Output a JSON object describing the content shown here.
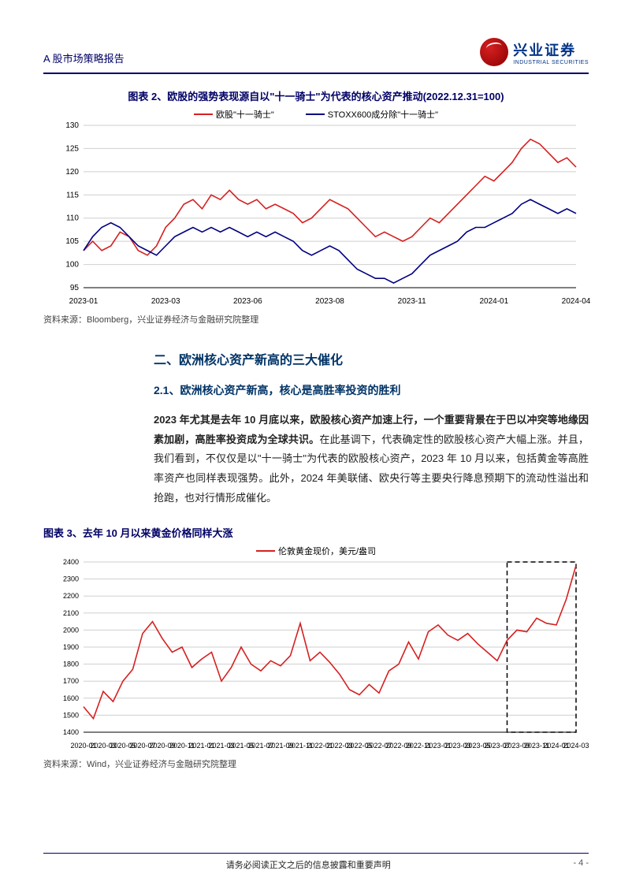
{
  "header": {
    "report_type": "A 股市场策略报告",
    "logo_cn": "兴业证券",
    "logo_en": "INDUSTRIAL SECURITIES"
  },
  "chart2": {
    "title": "图表 2、欧股的强势表现源自以\"十一骑士\"为代表的核心资产推动(2022.12.31=100)",
    "type": "line",
    "legend": [
      {
        "label": "欧股\"十一骑士\"",
        "color": "#d62020"
      },
      {
        "label": "STOXX600成分除\"十一骑士\"",
        "color": "#000080"
      }
    ],
    "x_categories": [
      "2023-01",
      "2023-03",
      "2023-06",
      "2023-08",
      "2023-11",
      "2024-01",
      "2024-04"
    ],
    "ylim": [
      95,
      130
    ],
    "ytick_step": 5,
    "series_red": [
      103,
      105,
      103,
      104,
      107,
      106,
      103,
      102,
      104,
      108,
      110,
      113,
      114,
      112,
      115,
      114,
      116,
      114,
      113,
      114,
      112,
      113,
      112,
      111,
      109,
      110,
      112,
      114,
      113,
      112,
      110,
      108,
      106,
      107,
      106,
      105,
      106,
      108,
      110,
      109,
      111,
      113,
      115,
      117,
      119,
      118,
      120,
      122,
      125,
      127,
      126,
      124,
      122,
      123,
      121
    ],
    "series_blue": [
      103,
      106,
      108,
      109,
      108,
      106,
      104,
      103,
      102,
      104,
      106,
      107,
      108,
      107,
      108,
      107,
      108,
      107,
      106,
      107,
      106,
      107,
      106,
      105,
      103,
      102,
      103,
      104,
      103,
      101,
      99,
      98,
      97,
      97,
      96,
      97,
      98,
      100,
      102,
      103,
      104,
      105,
      107,
      108,
      108,
      109,
      110,
      111,
      113,
      114,
      113,
      112,
      111,
      112,
      111
    ],
    "grid_color": "#cfcfcf",
    "axis_color": "#000000",
    "label_fontsize": 10,
    "source": "资料来源：Bloomberg，兴业证券经济与金融研究院整理"
  },
  "section2": {
    "heading": "二、欧洲核心资产新高的三大催化",
    "sub_heading": "2.1、欧洲核心资产新高，核心是高胜率投资的胜利",
    "para_bold": "2023 年尤其是去年 10 月底以来，欧股核心资产加速上行，一个重要背景在于巴以冲突等地缘因素加剧，高胜率投资成为全球共识。",
    "para_rest": "在此基调下，代表确定性的欧股核心资产大幅上涨。并且，我们看到，不仅仅是以\"十一骑士\"为代表的欧股核心资产，2023 年 10 月以来，包括黄金等高胜率资产也同样表现强势。此外，2024 年美联储、欧央行等主要央行降息预期下的流动性溢出和抢跑，也对行情形成催化。"
  },
  "chart3": {
    "title": "图表 3、去年 10 月以来黄金价格同样大涨",
    "type": "line",
    "legend": [
      {
        "label": "伦敦黄金现价，美元/盎司",
        "color": "#d62020"
      }
    ],
    "x_categories": [
      "2020-01",
      "2020-03",
      "2020-05",
      "2020-07",
      "2020-09",
      "2020-11",
      "2021-01",
      "2021-03",
      "2021-05",
      "2021-07",
      "2021-09",
      "2021-11",
      "2022-01",
      "2022-03",
      "2022-05",
      "2022-07",
      "2022-09",
      "2022-11",
      "2023-01",
      "2023-03",
      "2023-05",
      "2023-07",
      "2023-09",
      "2023-11",
      "2024-01",
      "2024-03"
    ],
    "ylim": [
      1400,
      2400
    ],
    "ytick_step": 100,
    "series": [
      1550,
      1480,
      1640,
      1580,
      1700,
      1770,
      1980,
      2050,
      1950,
      1870,
      1900,
      1780,
      1830,
      1870,
      1700,
      1780,
      1900,
      1800,
      1760,
      1820,
      1790,
      1850,
      2040,
      1820,
      1870,
      1810,
      1740,
      1650,
      1620,
      1680,
      1630,
      1760,
      1800,
      1930,
      1830,
      1990,
      2030,
      1970,
      1940,
      1980,
      1920,
      1870,
      1820,
      1940,
      2000,
      1990,
      2070,
      2040,
      2030,
      2180,
      2380
    ],
    "highlight_box": {
      "x_start_index": 43,
      "x_end_index": 50,
      "dash": "6,4",
      "color": "#000000"
    },
    "grid_color": "#cfcfcf",
    "axis_color": "#000000",
    "label_fontsize": 9,
    "source": "资料来源：Wind，兴业证券经济与金融研究院整理"
  },
  "footer": {
    "notice": "请务必阅读正文之后的信息披露和重要声明",
    "page": "- 4 -"
  }
}
